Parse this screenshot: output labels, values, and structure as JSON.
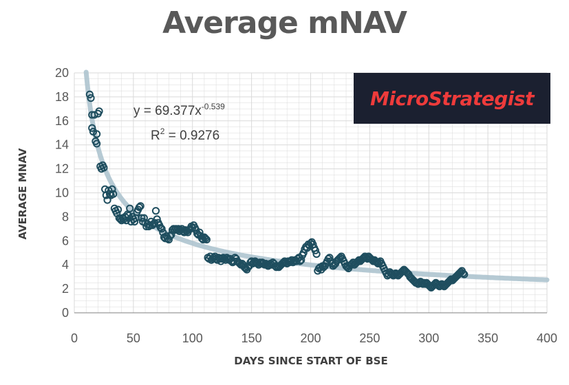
{
  "title": "Average mNAV",
  "logo": {
    "text": "MicroStrategist",
    "text_color": "#ee3b3b",
    "bg_color": "#1b2030"
  },
  "equation": {
    "base": "y = 69.377x",
    "exponent": "-0.539",
    "r2_label": "R",
    "r2_exp": "2",
    "r2_value": " = 0.9276"
  },
  "colors": {
    "points": "#1f4e5f",
    "trendline": "#a9c1cc",
    "grid": "#d9d9d9",
    "axis": "#808080"
  },
  "chart_data": {
    "type": "scatter",
    "title": "Average mNAV",
    "xlabel": "DAYS SINCE START OF BSE",
    "ylabel": "AVERAGE MNAV",
    "xlim": [
      0,
      400
    ],
    "ylim": [
      0,
      20
    ],
    "x_ticks": [
      0,
      50,
      100,
      150,
      200,
      250,
      300,
      350,
      400
    ],
    "y_ticks": [
      0,
      2,
      4,
      6,
      8,
      10,
      12,
      14,
      16,
      18,
      20
    ],
    "grid": true,
    "trendline": {
      "type": "power",
      "a": 69.377,
      "b": -0.539,
      "r2": 0.9276
    },
    "points": [
      [
        13,
        18.2
      ],
      [
        14,
        17.9
      ],
      [
        15,
        16.5
      ],
      [
        15,
        15.4
      ],
      [
        16,
        15.1
      ],
      [
        17,
        16.5
      ],
      [
        18,
        14.3
      ],
      [
        19,
        14.9
      ],
      [
        19,
        14.1
      ],
      [
        20,
        16.6
      ],
      [
        21,
        16.8
      ],
      [
        22,
        12.2
      ],
      [
        23,
        12.0
      ],
      [
        24,
        12.3
      ],
      [
        25,
        12.1
      ],
      [
        26,
        10.3
      ],
      [
        27,
        9.8
      ],
      [
        28,
        9.4
      ],
      [
        29,
        10.2
      ],
      [
        30,
        9.9
      ],
      [
        31,
        9.8
      ],
      [
        32,
        10.3
      ],
      [
        33,
        9.9
      ],
      [
        34,
        8.7
      ],
      [
        35,
        8.5
      ],
      [
        36,
        8.3
      ],
      [
        37,
        8.6
      ],
      [
        38,
        7.9
      ],
      [
        39,
        7.8
      ],
      [
        40,
        7.7
      ],
      [
        41,
        7.9
      ],
      [
        42,
        7.8
      ],
      [
        43,
        8.0
      ],
      [
        44,
        7.7
      ],
      [
        45,
        8.2
      ],
      [
        46,
        8.1
      ],
      [
        47,
        8.7
      ],
      [
        48,
        7.6
      ],
      [
        49,
        8.0
      ],
      [
        50,
        7.8
      ],
      [
        51,
        7.6
      ],
      [
        52,
        7.9
      ],
      [
        53,
        8.4
      ],
      [
        54,
        8.6
      ],
      [
        55,
        8.8
      ],
      [
        56,
        8.9
      ],
      [
        57,
        7.9
      ],
      [
        58,
        7.6
      ],
      [
        59,
        7.9
      ],
      [
        60,
        7.5
      ],
      [
        61,
        7.2
      ],
      [
        62,
        7.4
      ],
      [
        63,
        7.2
      ],
      [
        64,
        7.3
      ],
      [
        65,
        7.6
      ],
      [
        66,
        7.3
      ],
      [
        67,
        7.4
      ],
      [
        68,
        7.5
      ],
      [
        69,
        8.5
      ],
      [
        70,
        7.8
      ],
      [
        71,
        7.5
      ],
      [
        72,
        7.3
      ],
      [
        73,
        7.1
      ],
      [
        74,
        7.0
      ],
      [
        75,
        6.7
      ],
      [
        76,
        6.3
      ],
      [
        77,
        6.2
      ],
      [
        78,
        6.4
      ],
      [
        79,
        6.2
      ],
      [
        80,
        6.1
      ],
      [
        81,
        6.4
      ],
      [
        82,
        6.5
      ],
      [
        83,
        6.9
      ],
      [
        84,
        7.0
      ],
      [
        85,
        6.9
      ],
      [
        86,
        7.0
      ],
      [
        87,
        6.9
      ],
      [
        88,
        7.0
      ],
      [
        89,
        6.8
      ],
      [
        90,
        6.9
      ],
      [
        91,
        7.0
      ],
      [
        92,
        6.8
      ],
      [
        93,
        6.7
      ],
      [
        94,
        6.9
      ],
      [
        95,
        6.8
      ],
      [
        96,
        6.7
      ],
      [
        97,
        6.9
      ],
      [
        98,
        7.0
      ],
      [
        99,
        7.2
      ],
      [
        100,
        7.1
      ],
      [
        101,
        7.3
      ],
      [
        102,
        7.1
      ],
      [
        103,
        6.9
      ],
      [
        104,
        6.6
      ],
      [
        105,
        6.5
      ],
      [
        106,
        6.7
      ],
      [
        107,
        6.4
      ],
      [
        108,
        6.2
      ],
      [
        109,
        6.1
      ],
      [
        110,
        6.3
      ],
      [
        111,
        6.2
      ],
      [
        112,
        6.1
      ],
      [
        113,
        4.6
      ],
      [
        114,
        4.5
      ],
      [
        115,
        4.7
      ],
      [
        116,
        4.4
      ],
      [
        117,
        4.5
      ],
      [
        118,
        4.6
      ],
      [
        119,
        4.7
      ],
      [
        120,
        4.5
      ],
      [
        121,
        4.4
      ],
      [
        122,
        4.6
      ],
      [
        123,
        4.5
      ],
      [
        124,
        4.3
      ],
      [
        125,
        4.5
      ],
      [
        126,
        4.6
      ],
      [
        127,
        4.5
      ],
      [
        128,
        4.4
      ],
      [
        129,
        4.6
      ],
      [
        130,
        4.5
      ],
      [
        131,
        4.4
      ],
      [
        132,
        4.5
      ],
      [
        133,
        4.3
      ],
      [
        134,
        4.2
      ],
      [
        135,
        4.3
      ],
      [
        136,
        4.6
      ],
      [
        137,
        4.5
      ],
      [
        138,
        4.3
      ],
      [
        139,
        4.2
      ],
      [
        140,
        4.1
      ],
      [
        141,
        4.0
      ],
      [
        142,
        4.1
      ],
      [
        143,
        4.0
      ],
      [
        144,
        3.8
      ],
      [
        145,
        3.7
      ],
      [
        146,
        3.6
      ],
      [
        147,
        3.8
      ],
      [
        148,
        3.9
      ],
      [
        149,
        4.2
      ],
      [
        150,
        4.3
      ],
      [
        151,
        4.1
      ],
      [
        152,
        4.2
      ],
      [
        153,
        4.3
      ],
      [
        154,
        4.2
      ],
      [
        155,
        4.1
      ],
      [
        156,
        4.0
      ],
      [
        157,
        4.2
      ],
      [
        158,
        4.1
      ],
      [
        159,
        4.2
      ],
      [
        160,
        4.1
      ],
      [
        161,
        4.0
      ],
      [
        162,
        4.1
      ],
      [
        163,
        4.0
      ],
      [
        164,
        3.9
      ],
      [
        165,
        4.0
      ],
      [
        166,
        4.1
      ],
      [
        167,
        4.0
      ],
      [
        168,
        4.2
      ],
      [
        169,
        4.1
      ],
      [
        170,
        3.9
      ],
      [
        171,
        3.8
      ],
      [
        172,
        3.9
      ],
      [
        173,
        3.8
      ],
      [
        174,
        3.9
      ],
      [
        175,
        4.0
      ],
      [
        176,
        4.1
      ],
      [
        177,
        4.2
      ],
      [
        178,
        4.3
      ],
      [
        179,
        4.2
      ],
      [
        180,
        4.1
      ],
      [
        181,
        4.3
      ],
      [
        182,
        4.2
      ],
      [
        183,
        4.3
      ],
      [
        184,
        4.4
      ],
      [
        185,
        4.2
      ],
      [
        186,
        4.3
      ],
      [
        187,
        4.4
      ],
      [
        188,
        4.3
      ],
      [
        189,
        4.5
      ],
      [
        190,
        4.6
      ],
      [
        191,
        4.3
      ],
      [
        192,
        4.4
      ],
      [
        193,
        4.8
      ],
      [
        194,
        5.0
      ],
      [
        195,
        5.3
      ],
      [
        196,
        5.5
      ],
      [
        197,
        5.4
      ],
      [
        198,
        5.7
      ],
      [
        199,
        5.6
      ],
      [
        200,
        5.8
      ],
      [
        201,
        5.9
      ],
      [
        202,
        5.7
      ],
      [
        203,
        5.4
      ],
      [
        204,
        5.2
      ],
      [
        205,
        4.9
      ],
      [
        206,
        3.5
      ],
      [
        207,
        3.7
      ],
      [
        208,
        3.8
      ],
      [
        209,
        3.6
      ],
      [
        210,
        3.9
      ],
      [
        211,
        3.8
      ],
      [
        212,
        3.9
      ],
      [
        213,
        4.1
      ],
      [
        214,
        4.3
      ],
      [
        215,
        4.5
      ],
      [
        216,
        4.6
      ],
      [
        217,
        4.3
      ],
      [
        218,
        4.1
      ],
      [
        219,
        3.9
      ],
      [
        220,
        4.0
      ],
      [
        221,
        4.1
      ],
      [
        222,
        4.3
      ],
      [
        223,
        4.4
      ],
      [
        224,
        4.5
      ],
      [
        225,
        4.6
      ],
      [
        226,
        4.7
      ],
      [
        227,
        4.5
      ],
      [
        228,
        4.3
      ],
      [
        229,
        4.1
      ],
      [
        230,
        3.9
      ],
      [
        231,
        3.8
      ],
      [
        232,
        3.7
      ],
      [
        233,
        3.9
      ],
      [
        234,
        4.0
      ],
      [
        235,
        4.1
      ],
      [
        236,
        4.2
      ],
      [
        237,
        4.0
      ],
      [
        238,
        4.1
      ],
      [
        239,
        4.2
      ],
      [
        240,
        4.3
      ],
      [
        241,
        4.4
      ],
      [
        242,
        4.3
      ],
      [
        243,
        4.4
      ],
      [
        244,
        4.5
      ],
      [
        245,
        4.6
      ],
      [
        246,
        4.7
      ],
      [
        247,
        4.6
      ],
      [
        248,
        4.5
      ],
      [
        249,
        4.7
      ],
      [
        250,
        4.6
      ],
      [
        251,
        4.5
      ],
      [
        252,
        4.4
      ],
      [
        253,
        4.3
      ],
      [
        254,
        4.4
      ],
      [
        255,
        4.3
      ],
      [
        256,
        4.2
      ],
      [
        257,
        4.1
      ],
      [
        258,
        4.2
      ],
      [
        259,
        4.3
      ],
      [
        260,
        4.1
      ],
      [
        261,
        3.9
      ],
      [
        262,
        3.7
      ],
      [
        263,
        3.5
      ],
      [
        264,
        3.3
      ],
      [
        265,
        3.1
      ],
      [
        266,
        3.2
      ],
      [
        267,
        3.4
      ],
      [
        268,
        3.3
      ],
      [
        269,
        3.2
      ],
      [
        270,
        3.1
      ],
      [
        271,
        3.2
      ],
      [
        272,
        3.3
      ],
      [
        273,
        3.2
      ],
      [
        274,
        3.1
      ],
      [
        275,
        3.2
      ],
      [
        276,
        3.3
      ],
      [
        277,
        3.4
      ],
      [
        278,
        3.5
      ],
      [
        279,
        3.6
      ],
      [
        280,
        3.5
      ],
      [
        281,
        3.4
      ],
      [
        282,
        3.3
      ],
      [
        283,
        3.2
      ],
      [
        284,
        3.0
      ],
      [
        285,
        2.9
      ],
      [
        286,
        2.8
      ],
      [
        287,
        2.7
      ],
      [
        288,
        2.6
      ],
      [
        289,
        2.5
      ],
      [
        290,
        2.5
      ],
      [
        291,
        2.4
      ],
      [
        292,
        2.5
      ],
      [
        293,
        2.6
      ],
      [
        294,
        2.5
      ],
      [
        295,
        2.4
      ],
      [
        296,
        2.5
      ],
      [
        297,
        2.4
      ],
      [
        298,
        2.5
      ],
      [
        299,
        2.4
      ],
      [
        300,
        2.3
      ],
      [
        301,
        2.2
      ],
      [
        302,
        2.1
      ],
      [
        303,
        2.2
      ],
      [
        304,
        2.3
      ],
      [
        305,
        2.4
      ],
      [
        306,
        2.5
      ],
      [
        307,
        2.4
      ],
      [
        308,
        2.3
      ],
      [
        309,
        2.2
      ],
      [
        310,
        2.3
      ],
      [
        311,
        2.4
      ],
      [
        312,
        2.3
      ],
      [
        313,
        2.2
      ],
      [
        314,
        2.3
      ],
      [
        315,
        2.4
      ],
      [
        316,
        2.5
      ],
      [
        317,
        2.6
      ],
      [
        318,
        2.7
      ],
      [
        319,
        2.8
      ],
      [
        320,
        2.7
      ],
      [
        321,
        2.8
      ],
      [
        322,
        2.9
      ],
      [
        323,
        3.0
      ],
      [
        324,
        3.1
      ],
      [
        325,
        3.2
      ],
      [
        326,
        3.3
      ],
      [
        327,
        3.4
      ],
      [
        328,
        3.5
      ],
      [
        329,
        3.3
      ],
      [
        330,
        3.2
      ]
    ]
  }
}
